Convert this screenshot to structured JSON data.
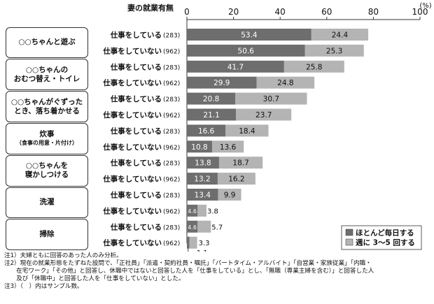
{
  "chart_data": {
    "type": "bar",
    "orientation": "horizontal",
    "stacked": true,
    "xlim": [
      0,
      100
    ],
    "x_ticks": [
      0,
      20,
      40,
      60,
      80,
      100
    ],
    "unit_label": "(%)",
    "row_header": "妻の就業有無",
    "series": [
      {
        "name": "ほとんど毎日する",
        "color": "#6e6e6e"
      },
      {
        "name": "週に 3～5 回する",
        "color": "#b4b4b4"
      }
    ],
    "groups": [
      {
        "label": "○○ちゃんと遊ぶ",
        "sublabel": "",
        "rows": [
          {
            "label": "仕事をしている",
            "n": "(283)",
            "values": [
              53.4,
              24.4
            ]
          },
          {
            "label": "仕事をしていない",
            "n": "(962)",
            "values": [
              50.6,
              25.3
            ]
          }
        ]
      },
      {
        "label": "○○ちゃんの\nおむつ替え・トイレ",
        "sublabel": "",
        "rows": [
          {
            "label": "仕事をしている",
            "n": "(283)",
            "values": [
              41.7,
              25.8
            ]
          },
          {
            "label": "仕事をしていない",
            "n": "(962)",
            "values": [
              29.9,
              24.8
            ]
          }
        ]
      },
      {
        "label": "○○ちゃんがぐずった\nとき、落ち着かせる",
        "sublabel": "",
        "rows": [
          {
            "label": "仕事をしている",
            "n": "(283)",
            "values": [
              20.8,
              30.7
            ]
          },
          {
            "label": "仕事をしていない",
            "n": "(962)",
            "values": [
              21.1,
              23.7
            ]
          }
        ]
      },
      {
        "label": "炊事",
        "sublabel": "（食事の用意・片付け）",
        "rows": [
          {
            "label": "仕事をしている",
            "n": "(283)",
            "values": [
              16.6,
              18.4
            ]
          },
          {
            "label": "仕事をしていない",
            "n": "(962)",
            "values": [
              10.8,
              13.6
            ]
          }
        ]
      },
      {
        "label": "○○ちゃんを\n寝かしつける",
        "sublabel": "",
        "rows": [
          {
            "label": "仕事をしている",
            "n": "(283)",
            "values": [
              13.8,
              18.7
            ]
          },
          {
            "label": "仕事をしていない",
            "n": "(962)",
            "values": [
              13.2,
              16.2
            ]
          }
        ]
      },
      {
        "label": "洗濯",
        "sublabel": "",
        "rows": [
          {
            "label": "仕事をしている",
            "n": "(283)",
            "values": [
              13.4,
              9.9
            ]
          },
          {
            "label": "仕事をしていない",
            "n": "(962)",
            "values": [
              4.6,
              3.8
            ]
          }
        ]
      },
      {
        "label": "掃除",
        "sublabel": "",
        "rows": [
          {
            "label": "仕事をしている",
            "n": "(283)",
            "values": [
              4.6,
              5.7
            ]
          },
          {
            "label": "仕事をしていない",
            "n": "(962)",
            "values": [
              1.1,
              3.3
            ]
          }
        ]
      }
    ]
  },
  "notes": [
    "注1）夫婦ともに回答のあった人のみ分析。",
    "注2）現在の就業形態をたずねた設問で、「正社員」「派遣・契約社員・嘱託」「パートタイム・アルバイト」「自営業・家族従業」「内職・\n　　在宅ワーク」「その他」と回答し、休職中ではないと回答した人を「仕事をしている」とし、「無職（専業主婦を含む）」と回答した人\n　　及び「休職中」と回答した人を「仕事をしていない」とした。",
    "注3）（　）内はサンプル数。"
  ]
}
